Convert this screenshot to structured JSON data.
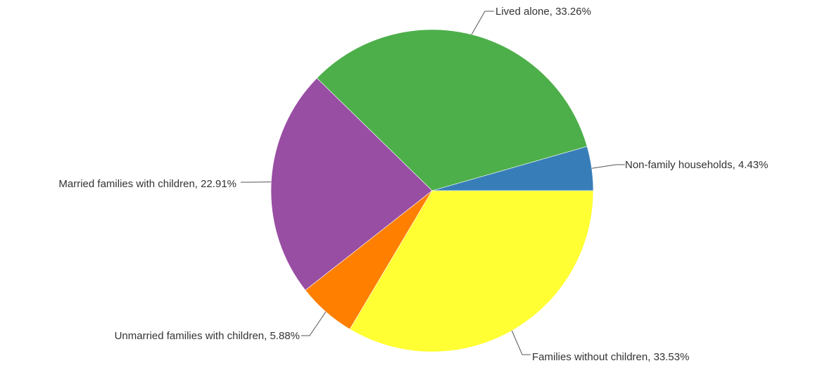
{
  "chart_data": {
    "type": "pie",
    "title": "",
    "slices": [
      {
        "label": "Non-family households, 4.43%",
        "name": "Non-family households",
        "value": 4.43,
        "color": "#377eb8"
      },
      {
        "label": "Lived alone, 33.26%",
        "name": "Lived alone",
        "value": 33.26,
        "color": "#4daf4a"
      },
      {
        "label": "Married families with children, 22.91%",
        "name": "Married families with children",
        "value": 22.91,
        "color": "#984ea3"
      },
      {
        "label": "Unmarried families with children, 5.88%",
        "name": "Unmarried families with children",
        "value": 5.88,
        "color": "#ff7f00"
      },
      {
        "label": "Families without children, 33.53%",
        "name": "Families without children",
        "value": 33.53,
        "color": "#ffff33"
      }
    ],
    "start": "3 o'clock",
    "direction": "counterclockwise",
    "legend": "none",
    "data_labels": "outside with leader lines"
  }
}
